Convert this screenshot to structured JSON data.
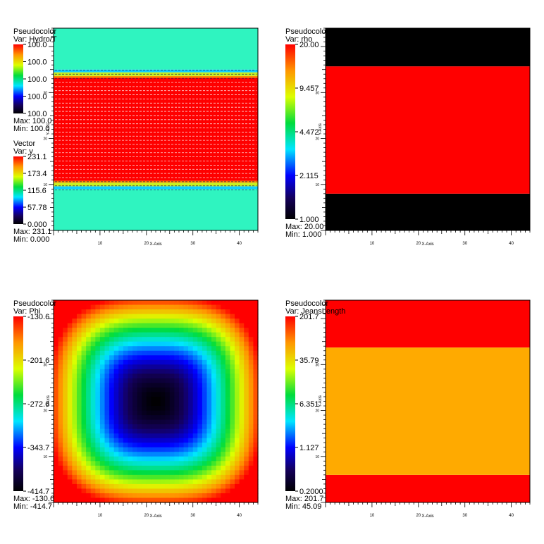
{
  "chart_data": [
    {
      "type": "heatmap",
      "legend": {
        "title": "Pseudocolor",
        "var": "Var: Hydro/T",
        "ticks": [
          "100.0",
          "100.0",
          "100.0",
          "100.0",
          "100.0"
        ],
        "max": "Max: 100.0",
        "min": "Min: 100.0"
      },
      "legend2": {
        "title": "Vector",
        "var": "Var: v",
        "ticks": [
          "231.1",
          "173.4",
          "115.6",
          "57.78",
          "0.000"
        ],
        "max": "Max: 231.1",
        "min": "Min: 0.000"
      },
      "xlabel": "X-Axis",
      "ylabel": "Y-Axis",
      "xticks": [
        "10",
        "20",
        "30",
        "40"
      ],
      "yticks": [
        "10",
        "20",
        "30"
      ],
      "xlim": [
        0,
        44
      ],
      "ylim": [
        0,
        44
      ],
      "bands": [
        {
          "from": 0,
          "to": 9,
          "color": "#2ff4c0"
        },
        {
          "from": 9,
          "to": 9.6,
          "color": "#0fd0ff"
        },
        {
          "from": 9.6,
          "to": 10.4,
          "color": "#c8f020"
        },
        {
          "from": 10.4,
          "to": 10.8,
          "color": "#ff8800"
        },
        {
          "from": 10.8,
          "to": 33.2,
          "color": "#ff0000"
        },
        {
          "from": 33.2,
          "to": 33.6,
          "color": "#ff8800"
        },
        {
          "from": 33.6,
          "to": 34.4,
          "color": "#c8f020"
        },
        {
          "from": 34.4,
          "to": 35,
          "color": "#0fd0ff"
        },
        {
          "from": 35,
          "to": 44,
          "color": "#2ff4c0"
        }
      ],
      "vector_rows": {
        "from": 8.8,
        "to": 35.2,
        "step": 0.9
      }
    },
    {
      "type": "heatmap",
      "legend": {
        "title": "Pseudocolor",
        "var": "Var: rho",
        "ticks": [
          "20.00",
          "9.457",
          "4.472",
          "2.115",
          "1.000"
        ],
        "max": "Max: 20.00",
        "min": "Min: 1.000"
      },
      "xlabel": "X-Axis",
      "ylabel": "Y-Axis",
      "xticks": [
        "10",
        "20",
        "30",
        "40"
      ],
      "yticks": [
        "10",
        "20",
        "30"
      ],
      "xlim": [
        0,
        44
      ],
      "ylim": [
        0,
        44
      ],
      "bands": [
        {
          "from": 0,
          "to": 8,
          "color": "#000000"
        },
        {
          "from": 8,
          "to": 35.7,
          "color": "#ff0000"
        },
        {
          "from": 35.7,
          "to": 44,
          "color": "#000000"
        }
      ]
    },
    {
      "type": "heatmap",
      "legend": {
        "title": "Pseudocolor",
        "var": "Var: Phi",
        "ticks": [
          "-130.6",
          "-201.6",
          "-272.6",
          "-343.7",
          "-414.7"
        ],
        "max": "Max: -130.6",
        "min": "Min: -414.7"
      },
      "xlabel": "X-Axis",
      "ylabel": "Y-Axis",
      "xticks": [
        "10",
        "20",
        "30",
        "40"
      ],
      "yticks": [
        "10",
        "20",
        "30"
      ],
      "xlim": [
        0,
        44
      ],
      "ylim": [
        0,
        44
      ],
      "field": {
        "vmin": -414.7,
        "vmax": -130.6,
        "center": [
          22,
          22
        ],
        "grid": 44
      }
    },
    {
      "type": "heatmap",
      "legend": {
        "title": "Pseudocolor",
        "var": "Var: JeansLength",
        "ticks": [
          "201.7",
          "35.79",
          "6.351",
          "1.127",
          "0.2000"
        ],
        "max": "Max: 201.7",
        "min": "Min: 45.09"
      },
      "xlabel": "X-Axis",
      "ylabel": "Y-Axis",
      "xticks": [
        "10",
        "20",
        "30",
        "40"
      ],
      "yticks": [
        "10",
        "20",
        "30"
      ],
      "xlim": [
        0,
        44
      ],
      "ylim": [
        0,
        44
      ],
      "bands": [
        {
          "from": 0,
          "to": 6,
          "color": "#ff0000"
        },
        {
          "from": 6,
          "to": 33.7,
          "color": "#ffaa00"
        },
        {
          "from": 33.7,
          "to": 44,
          "color": "#ff0000"
        }
      ]
    }
  ]
}
